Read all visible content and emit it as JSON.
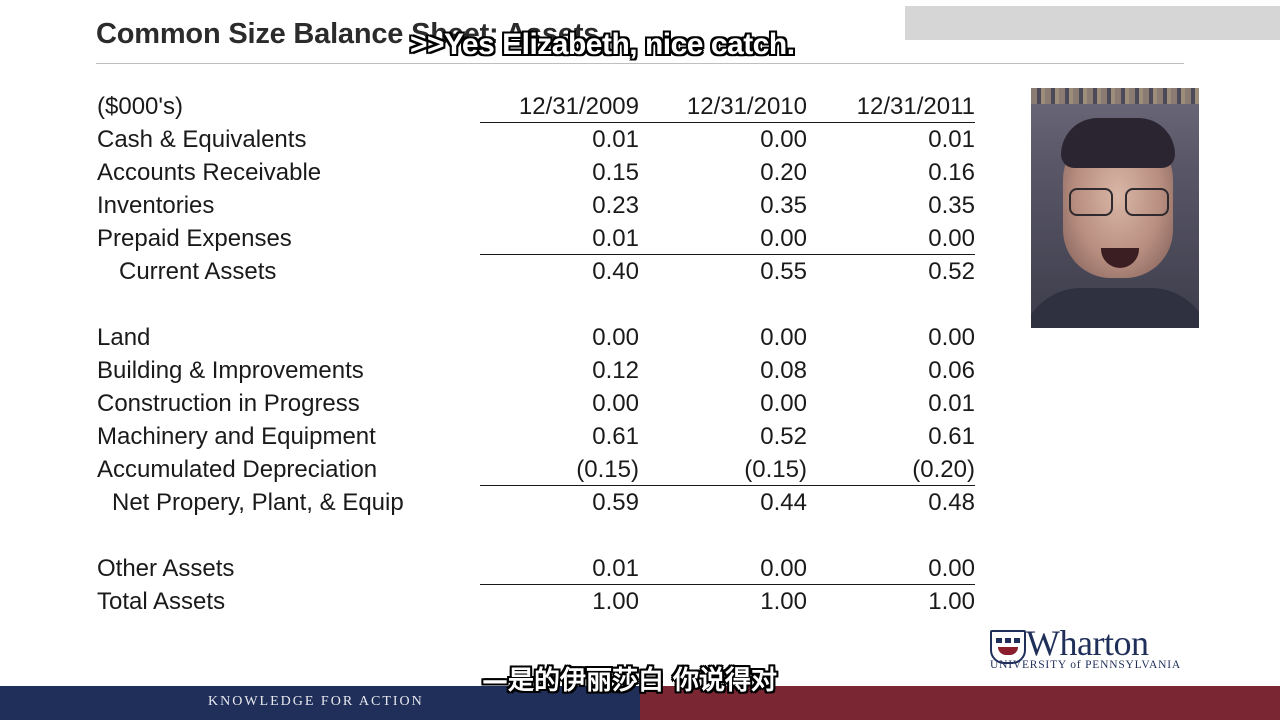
{
  "slide": {
    "title": "Common Size Balance Sheet: Assets"
  },
  "captions": {
    "english": ">>Yes Elizabeth, nice catch.",
    "chinese": "—是的伊丽莎白 你说得对"
  },
  "table": {
    "unit_label": "($000's)",
    "columns": [
      "12/31/2009",
      "12/31/2010",
      "12/31/2011"
    ],
    "rows": [
      {
        "label": "Cash & Equivalents",
        "values": [
          "0.01",
          "0.00",
          "0.01"
        ]
      },
      {
        "label": "Accounts Receivable",
        "values": [
          "0.15",
          "0.20",
          "0.16"
        ]
      },
      {
        "label": "Inventories",
        "values": [
          "0.23",
          "0.35",
          "0.35"
        ]
      },
      {
        "label": "Prepaid Expenses",
        "values": [
          "0.01",
          "0.00",
          "0.00"
        ]
      },
      {
        "label": "Current Assets",
        "values": [
          "0.40",
          "0.55",
          "0.52"
        ]
      },
      {
        "label": "Land",
        "values": [
          "0.00",
          "0.00",
          "0.00"
        ]
      },
      {
        "label": "Building & Improvements",
        "values": [
          "0.12",
          "0.08",
          "0.06"
        ]
      },
      {
        "label": "Construction in Progress",
        "values": [
          "0.00",
          "0.00",
          "0.01"
        ]
      },
      {
        "label": "Machinery and Equipment",
        "values": [
          "0.61",
          "0.52",
          "0.61"
        ]
      },
      {
        "label": "Accumulated Depreciation",
        "values": [
          "(0.15)",
          "(0.15)",
          "(0.20)"
        ]
      },
      {
        "label": "Net Propery, Plant, & Equip",
        "values": [
          "0.59",
          "0.44",
          "0.48"
        ]
      },
      {
        "label": "Other Assets",
        "values": [
          "0.01",
          "0.00",
          "0.00"
        ]
      },
      {
        "label": "Total Assets",
        "values": [
          "1.00",
          "1.00",
          "1.00"
        ]
      }
    ]
  },
  "logo": {
    "name": "Wharton",
    "subtitle": "UNIVERSITY of PENNSYLVANIA"
  },
  "footer": {
    "tagline": "KNOWLEDGE FOR ACTION"
  },
  "colors": {
    "navy": "#1f2f5a",
    "maroon": "#7a2733"
  }
}
